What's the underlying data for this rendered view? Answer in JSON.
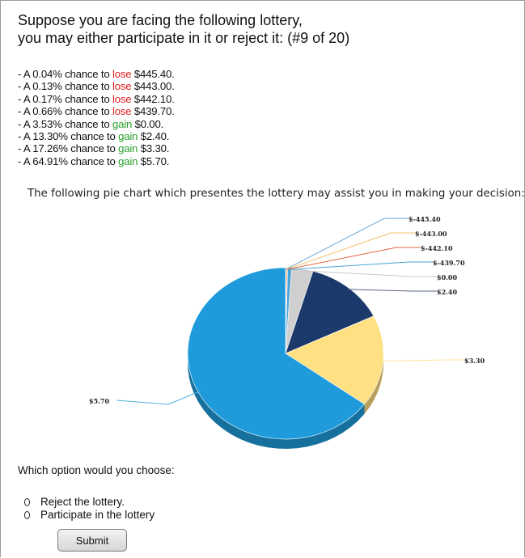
{
  "header": {
    "line1": "Suppose you are facing the following lottery,",
    "line2": "you may either participate in it or reject it: (#9 of 20)"
  },
  "outcomes": [
    {
      "prefix": "- A 0.04% chance to ",
      "verb": "lose",
      "amount": " $445.40.",
      "kind": "lose"
    },
    {
      "prefix": "- A 0.13% chance to ",
      "verb": "lose",
      "amount": " $443.00.",
      "kind": "lose"
    },
    {
      "prefix": "- A 0.17% chance to ",
      "verb": "lose",
      "amount": " $442.10.",
      "kind": "lose"
    },
    {
      "prefix": "- A 0.66% chance to ",
      "verb": "lose",
      "amount": " $439.70.",
      "kind": "lose"
    },
    {
      "prefix": "- A 3.53% chance to ",
      "verb": "gain",
      "amount": " $0.00.",
      "kind": "gain"
    },
    {
      "prefix": "- A 13.30% chance to ",
      "verb": "gain",
      "amount": " $2.40.",
      "kind": "gain"
    },
    {
      "prefix": "- A 17.26% chance to ",
      "verb": "gain",
      "amount": " $3.30.",
      "kind": "gain"
    },
    {
      "prefix": "- A 64.91% chance to ",
      "verb": "gain",
      "amount": " $5.70.",
      "kind": "gain"
    }
  ],
  "colors": {
    "lose": "#e02020",
    "gain": "#2aa02a"
  },
  "intro_text": "The following pie chart which presentes the lottery may assist you in making your decision:",
  "chart_data": {
    "type": "pie",
    "labels": [
      "$-445.40",
      "$-443.00",
      "$-442.10",
      "$-439.70",
      "$0.00",
      "$2.40",
      "$3.30",
      "$5.70"
    ],
    "values": [
      0.04,
      0.13,
      0.17,
      0.66,
      3.53,
      13.3,
      17.26,
      64.91
    ],
    "colors": [
      "#1f77b4",
      "#ffd27a",
      "#e8643c",
      "#4aa3d8",
      "#cfcfcf",
      "#1b3a6b",
      "#ffe082",
      "#1f9bdc"
    ],
    "style": "3d"
  },
  "question": "Which option would you choose:",
  "options": [
    {
      "label": "Reject the lottery."
    },
    {
      "label": "Participate in the lottery"
    }
  ],
  "submit_label": "Submit"
}
